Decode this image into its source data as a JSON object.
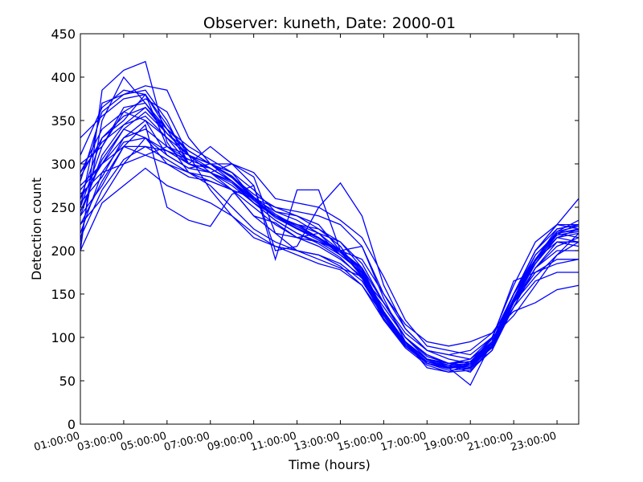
{
  "chart_data": {
    "type": "line",
    "title": "Observer: kuneth, Date: 2000-01",
    "xlabel": "Time (hours)",
    "ylabel": "Detection count",
    "ylim": [
      0,
      450
    ],
    "xlim": [
      1,
      24
    ],
    "y_ticks": [
      0,
      50,
      100,
      150,
      200,
      250,
      300,
      350,
      400,
      450
    ],
    "x_ticks": [
      {
        "x": 1,
        "label": "01:00:00"
      },
      {
        "x": 3,
        "label": "03:00:00"
      },
      {
        "x": 5,
        "label": "05:00:00"
      },
      {
        "x": 7,
        "label": "07:00:00"
      },
      {
        "x": 9,
        "label": "09:00:00"
      },
      {
        "x": 11,
        "label": "11:00:00"
      },
      {
        "x": 13,
        "label": "13:00:00"
      },
      {
        "x": 15,
        "label": "15:00:00"
      },
      {
        "x": 17,
        "label": "17:00:00"
      },
      {
        "x": 19,
        "label": "19:00:00"
      },
      {
        "x": 21,
        "label": "21:00:00"
      },
      {
        "x": 23,
        "label": "23:00:00"
      }
    ],
    "grid": false,
    "legend": "none",
    "line_color": "#0000ff",
    "x": [
      1,
      2,
      3,
      4,
      5,
      6,
      7,
      8,
      9,
      10,
      11,
      12,
      13,
      14,
      15,
      16,
      17,
      18,
      19,
      20,
      21,
      22,
      23,
      24
    ],
    "series": [
      {
        "values": [
          200,
          385,
          408,
          418,
          325,
          290,
          280,
          270,
          240,
          232,
          215,
          220,
          200,
          180,
          130,
          95,
          70,
          65,
          45,
          95,
          150,
          190,
          222,
          235
        ]
      },
      {
        "values": [
          210,
          350,
          400,
          370,
          340,
          300,
          290,
          300,
          275,
          200,
          205,
          250,
          278,
          240,
          160,
          110,
          85,
          75,
          70,
          100,
          160,
          210,
          230,
          225
        ]
      },
      {
        "values": [
          250,
          370,
          380,
          390,
          385,
          330,
          300,
          280,
          260,
          240,
          230,
          220,
          210,
          185,
          140,
          100,
          80,
          70,
          65,
          95,
          150,
          200,
          225,
          230
        ]
      },
      {
        "values": [
          280,
          360,
          380,
          385,
          350,
          300,
          290,
          280,
          260,
          245,
          240,
          230,
          200,
          180,
          140,
          105,
          85,
          80,
          75,
          100,
          150,
          190,
          215,
          225
        ]
      },
      {
        "values": [
          300,
          320,
          360,
          375,
          360,
          310,
          300,
          285,
          265,
          250,
          240,
          225,
          205,
          170,
          135,
          100,
          80,
          70,
          68,
          95,
          145,
          195,
          220,
          215
        ]
      },
      {
        "values": [
          260,
          330,
          350,
          380,
          340,
          320,
          305,
          290,
          270,
          245,
          235,
          220,
          195,
          175,
          125,
          95,
          75,
          68,
          60,
          90,
          140,
          185,
          215,
          220
        ]
      },
      {
        "values": [
          240,
          310,
          345,
          365,
          335,
          315,
          300,
          290,
          260,
          240,
          230,
          215,
          200,
          180,
          125,
          90,
          70,
          62,
          64,
          85,
          135,
          180,
          210,
          210
        ]
      },
      {
        "values": [
          270,
          300,
          330,
          340,
          320,
          305,
          295,
          280,
          255,
          235,
          220,
          210,
          195,
          175,
          130,
          95,
          75,
          70,
          72,
          92,
          150,
          200,
          230,
          230
        ]
      },
      {
        "values": [
          230,
          280,
          320,
          310,
          300,
          290,
          285,
          270,
          250,
          230,
          215,
          205,
          190,
          170,
          120,
          90,
          72,
          65,
          68,
          88,
          140,
          190,
          225,
          230
        ]
      },
      {
        "values": [
          290,
          340,
          360,
          350,
          310,
          295,
          290,
          275,
          255,
          240,
          225,
          215,
          200,
          170,
          125,
          90,
          72,
          68,
          70,
          90,
          145,
          185,
          215,
          210
        ]
      },
      {
        "values": [
          310,
          365,
          385,
          380,
          320,
          300,
          295,
          280,
          255,
          240,
          230,
          225,
          210,
          180,
          140,
          100,
          78,
          70,
          72,
          95,
          150,
          195,
          220,
          225
        ]
      },
      {
        "values": [
          250,
          320,
          365,
          370,
          335,
          310,
          300,
          285,
          260,
          240,
          225,
          215,
          200,
          178,
          130,
          92,
          72,
          65,
          66,
          90,
          140,
          180,
          205,
          215
        ]
      },
      {
        "values": [
          330,
          355,
          375,
          380,
          345,
          310,
          295,
          280,
          258,
          240,
          228,
          215,
          195,
          175,
          130,
          95,
          75,
          68,
          70,
          92,
          150,
          190,
          210,
          205
        ]
      },
      {
        "values": [
          220,
          290,
          325,
          330,
          315,
          300,
          290,
          278,
          255,
          235,
          220,
          208,
          192,
          168,
          122,
          90,
          70,
          64,
          68,
          88,
          140,
          185,
          220,
          230
        ]
      },
      {
        "values": [
          275,
          300,
          320,
          320,
          315,
          305,
          295,
          280,
          258,
          238,
          225,
          212,
          198,
          172,
          128,
          95,
          74,
          66,
          70,
          92,
          145,
          190,
          222,
          228
        ]
      },
      {
        "values": [
          245,
          305,
          340,
          360,
          335,
          310,
          300,
          286,
          262,
          242,
          228,
          215,
          200,
          176,
          128,
          94,
          72,
          66,
          64,
          90,
          142,
          188,
          218,
          222
        ]
      },
      {
        "values": [
          285,
          330,
          355,
          365,
          340,
          315,
          300,
          284,
          260,
          240,
          226,
          214,
          198,
          174,
          126,
          92,
          72,
          66,
          68,
          90,
          144,
          190,
          220,
          224
        ]
      },
      {
        "values": [
          200,
          255,
          275,
          295,
          275,
          265,
          255,
          240,
          220,
          205,
          195,
          185,
          178,
          160,
          125,
          95,
          75,
          70,
          72,
          98,
          165,
          175,
          185,
          190
        ]
      },
      {
        "values": [
          215,
          270,
          305,
          320,
          305,
          290,
          275,
          250,
          225,
          210,
          200,
          195,
          182,
          160,
          120,
          88,
          68,
          60,
          62,
          85,
          140,
          170,
          195,
          210
        ]
      },
      {
        "values": [
          265,
          290,
          300,
          310,
          320,
          310,
          270,
          240,
          215,
          205,
          200,
          195,
          185,
          165,
          125,
          90,
          70,
          65,
          68,
          88,
          135,
          165,
          175,
          175
        ]
      },
      {
        "values": [
          240,
          275,
          320,
          345,
          250,
          235,
          228,
          265,
          275,
          190,
          270,
          270,
          200,
          205,
          145,
          95,
          65,
          60,
          70,
          95,
          150,
          200,
          230,
          260
        ]
      },
      {
        "values": [
          230,
          260,
          300,
          330,
          310,
          295,
          300,
          300,
          285,
          220,
          215,
          210,
          200,
          190,
          150,
          115,
          95,
          90,
          95,
          105,
          130,
          140,
          155,
          160
        ]
      },
      {
        "values": [
          255,
          285,
          330,
          350,
          330,
          300,
          320,
          300,
          290,
          260,
          255,
          250,
          235,
          215,
          170,
          120,
          90,
          85,
          80,
          100,
          125,
          160,
          195,
          220
        ]
      },
      {
        "values": [
          290,
          325,
          345,
          355,
          330,
          310,
          290,
          270,
          240,
          220,
          200,
          190,
          180,
          170,
          140,
          100,
          75,
          70,
          75,
          95,
          135,
          180,
          200,
          200
        ]
      },
      {
        "values": [
          260,
          300,
          340,
          330,
          300,
          285,
          280,
          270,
          260,
          250,
          245,
          240,
          230,
          205,
          150,
          110,
          85,
          80,
          85,
          105,
          140,
          175,
          190,
          190
        ]
      }
    ]
  }
}
